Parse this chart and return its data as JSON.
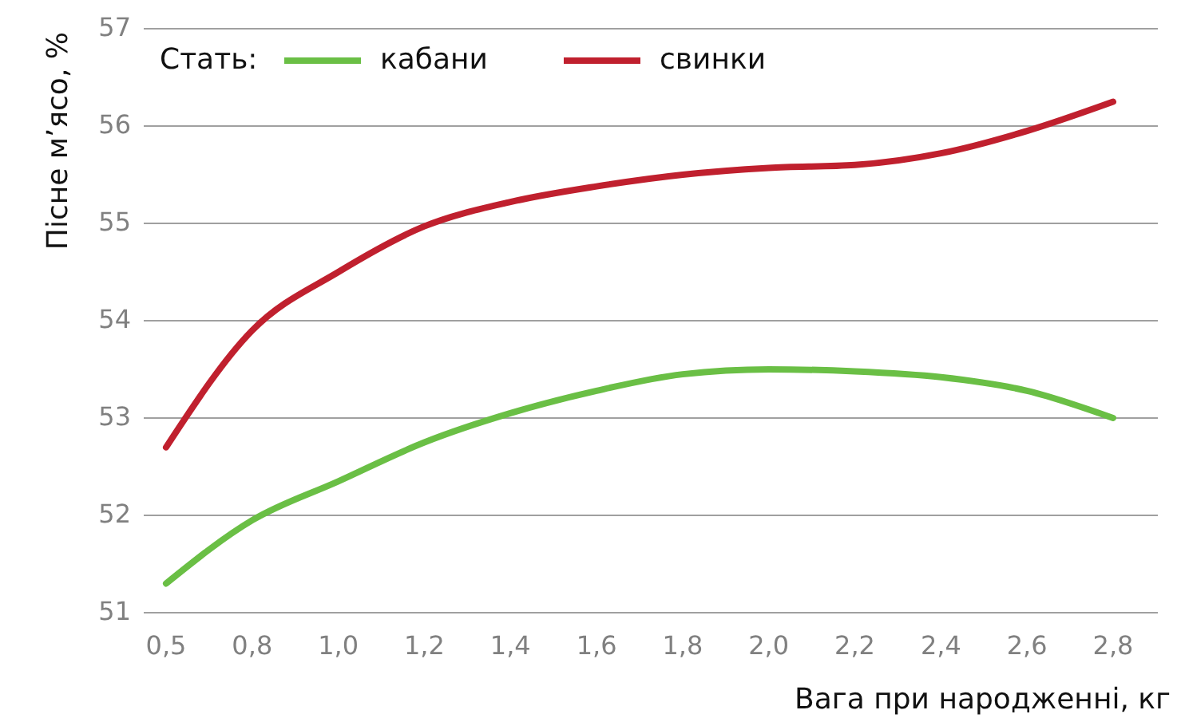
{
  "chart_data": {
    "type": "line",
    "xlabel": "Вага при народженні, кг",
    "ylabel": "Пісне м’ясо, %",
    "legend_title": "Стать:",
    "categories": [
      "0,5",
      "0,8",
      "1,0",
      "1,2",
      "1,4",
      "1,6",
      "1,8",
      "2,0",
      "2,2",
      "2,4",
      "2,6",
      "2,8"
    ],
    "series": [
      {
        "name": "кабани",
        "color": "#6abf45",
        "values": [
          51.3,
          51.95,
          52.35,
          52.75,
          53.05,
          53.28,
          53.45,
          53.5,
          53.48,
          53.42,
          53.28,
          53.0
        ]
      },
      {
        "name": "свинки",
        "color": "#c0202e",
        "values": [
          52.7,
          53.9,
          54.5,
          54.97,
          55.22,
          55.38,
          55.5,
          55.57,
          55.6,
          55.72,
          55.95,
          56.25
        ]
      }
    ],
    "ylim": [
      51,
      57
    ],
    "yticks": [
      51,
      52,
      53,
      54,
      55,
      56,
      57
    ],
    "grid": "y",
    "legend": "top left",
    "marker": "none",
    "line_style": "solid"
  }
}
